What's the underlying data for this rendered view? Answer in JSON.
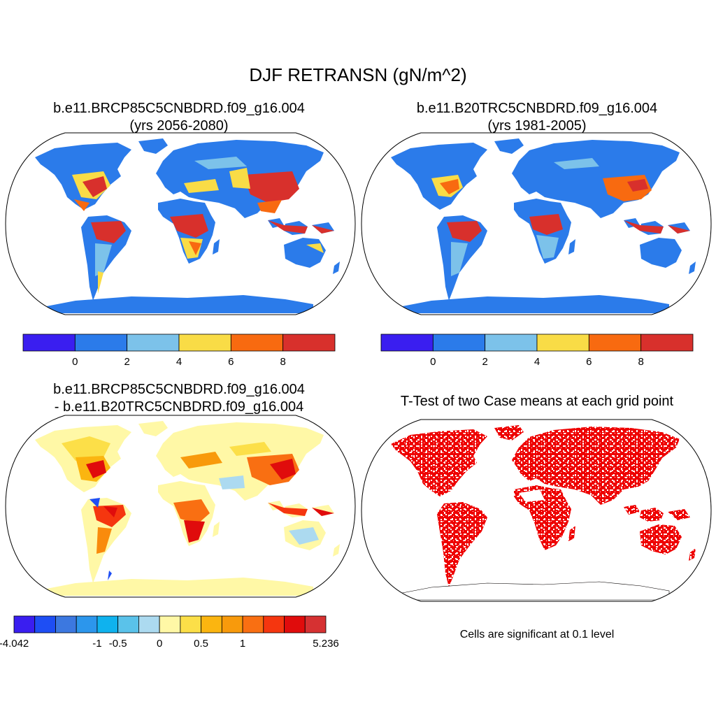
{
  "figure": {
    "title": "DJF RETRANSN (gN/m^2)"
  },
  "panels": {
    "case": {
      "title_line1": "b.e11.BRCP85C5CNBDRD.f09_g16.004",
      "title_line2": "(yrs 2056-2080)"
    },
    "control": {
      "title_line1": "b.e11.B20TRC5CNBDRD.f09_g16.004",
      "title_line2": "(yrs 1981-2005)"
    },
    "difference": {
      "title_line1": "b.e11.BRCP85C5CNBDRD.f09_g16.004",
      "title_line2": "- b.e11.B20TRC5CNBDRD.f09_g16.004"
    },
    "ttest": {
      "title": "T-Test of two Case means at each grid point",
      "note": "Cells are significant at 0.1 level"
    }
  },
  "chart_data": [
    {
      "type": "heatmap",
      "id": "case",
      "title": "b.e11.BRCP85C5CNBDRD.f09_g16.004 (yrs 2056-2080)",
      "projection": "robinson",
      "colorbar": {
        "colors": [
          "#3a1ef0",
          "#2b7bea",
          "#7cc2ea",
          "#f9dc46",
          "#f86a10",
          "#d8302c"
        ],
        "tick_labels": [
          "0",
          "2",
          "4",
          "6",
          "8"
        ]
      }
    },
    {
      "type": "heatmap",
      "id": "control",
      "title": "b.e11.B20TRC5CNBDRD.f09_g16.004 (yrs 1981-2005)",
      "projection": "robinson",
      "colorbar": {
        "colors": [
          "#3a1ef0",
          "#2b7bea",
          "#7cc2ea",
          "#f9dc46",
          "#f86a10",
          "#d8302c"
        ],
        "tick_labels": [
          "0",
          "2",
          "4",
          "6",
          "8"
        ]
      }
    },
    {
      "type": "heatmap",
      "id": "difference",
      "title": "b.e11.BRCP85C5CNBDRD.f09_g16.004 - b.e11.B20TRC5CNBDRD.f09_g16.004",
      "projection": "robinson",
      "colorbar": {
        "colors": [
          "#3a1ef0",
          "#1e4ef4",
          "#3c78e0",
          "#2c96ec",
          "#0fb2ee",
          "#5ac2ea",
          "#acdaf0",
          "#fff8a6",
          "#fcdf48",
          "#fbb510",
          "#f89a0c",
          "#f96f12",
          "#f5360f",
          "#e00c0c",
          "#d63132"
        ],
        "tick_labels": [
          "-4.042",
          "-1",
          "-0.5",
          "0",
          "0.5",
          "1",
          "5.236"
        ],
        "tick_boxes": [
          0,
          4,
          5,
          7,
          9,
          11,
          15
        ]
      }
    },
    {
      "type": "heatmap",
      "id": "ttest",
      "title": "T-Test of two Case means at each grid point",
      "projection": "robinson",
      "significance_color": "#ee0000"
    }
  ],
  "colors": {
    "coastline": "#000000",
    "ocean": "#ffffff"
  }
}
